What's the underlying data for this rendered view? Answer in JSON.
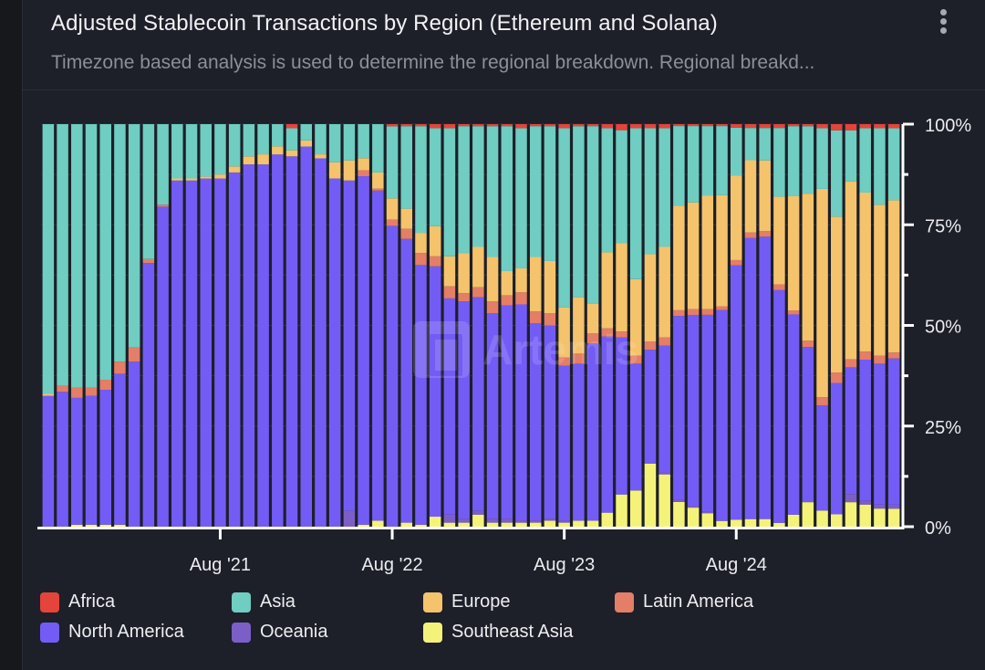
{
  "header": {
    "title": "Adjusted Stablecoin Transactions by Region (Ethereum and Solana)",
    "subtitle": "Timezone based analysis is used to determine the regional breakdown. Regional breakd...",
    "menu_icon": "more-vertical-icon"
  },
  "watermark": "Artemis",
  "chart_data": {
    "type": "bar",
    "stacked": true,
    "normalized": true,
    "title": "Adjusted Stablecoin Transactions by Region (Ethereum and Solana)",
    "xlabel": "",
    "ylabel": "",
    "ylim": [
      0,
      100
    ],
    "yticks": [
      "0%",
      "25%",
      "50%",
      "75%",
      "100%"
    ],
    "xticks": [
      {
        "label": "Aug '21",
        "index": 12
      },
      {
        "label": "Aug '22",
        "index": 24
      },
      {
        "label": "Aug '23",
        "index": 36
      },
      {
        "label": "Aug '24",
        "index": 48
      }
    ],
    "legend_position": "bottom",
    "grid": true,
    "categories": [
      "Aug 2020",
      "Sep 2020",
      "Oct 2020",
      "Nov 2020",
      "Dec 2020",
      "Jan 2021",
      "Feb 2021",
      "Mar 2021",
      "Apr 2021",
      "May 2021",
      "Jun 2021",
      "Jul 2021",
      "Aug 2021",
      "Sep 2021",
      "Oct 2021",
      "Nov 2021",
      "Dec 2021",
      "Jan 2022",
      "Feb 2022",
      "Mar 2022",
      "Apr 2022",
      "May 2022",
      "Jun 2022",
      "Jul 2022",
      "Aug 2022",
      "Sep 2022",
      "Oct 2022",
      "Nov 2022",
      "Dec 2022",
      "Jan 2023",
      "Feb 2023",
      "Mar 2023",
      "Apr 2023",
      "May 2023",
      "Jun 2023",
      "Jul 2023",
      "Aug 2023",
      "Sep 2023",
      "Oct 2023",
      "Nov 2023",
      "Dec 2023",
      "Jan 2024",
      "Feb 2024",
      "Mar 2024",
      "Apr 2024",
      "May 2024",
      "Jun 2024",
      "Jul 2024",
      "Aug 2024",
      "Sep 2024",
      "Oct 2024",
      "Nov 2024",
      "Dec 2024",
      "Jan 2025",
      "Feb 2025",
      "Mar 2025",
      "Apr 2025",
      "May 2025",
      "Jun 2025",
      "Jul 2025"
    ],
    "series": [
      {
        "name": "Southeast Asia",
        "color": "#f5f27a",
        "values": [
          0,
          0,
          0.5,
          0.5,
          0.5,
          0.5,
          0,
          0,
          0,
          0,
          0,
          0,
          0,
          0,
          0,
          0,
          0,
          0,
          0,
          0,
          0,
          0,
          0.5,
          1.5,
          0,
          1,
          0.5,
          2.5,
          1,
          1,
          3,
          1,
          1,
          1,
          1,
          1.5,
          1,
          1.5,
          1.5,
          3.5,
          8,
          9,
          15.5,
          13,
          6.5,
          5,
          3.5,
          1.5,
          2,
          2,
          2,
          1,
          3,
          6,
          4,
          3,
          6,
          5.5,
          4.5,
          4.5
        ]
      },
      {
        "name": "Oceania",
        "color": "#7b5fc7",
        "values": [
          0,
          0,
          0,
          0,
          0,
          0,
          0,
          0,
          0,
          0,
          0,
          0,
          0,
          0,
          0,
          0,
          0,
          0,
          0,
          0,
          0,
          4,
          0,
          0,
          0,
          0,
          0,
          0,
          2,
          1,
          1,
          1,
          1,
          0.5,
          0.5,
          0.5,
          0.5,
          0,
          0,
          0,
          0,
          0,
          0,
          0.5,
          0.5,
          0.5,
          0.5,
          0,
          0,
          0,
          0,
          0,
          0,
          0,
          0,
          0,
          2,
          1,
          1,
          1
        ]
      },
      {
        "name": "North America",
        "color": "#735cf5",
        "values": [
          32.5,
          33.5,
          31.5,
          32,
          33.5,
          37.5,
          41,
          65.5,
          79.5,
          86,
          86,
          86.5,
          86.5,
          88,
          90,
          90,
          92,
          92,
          93.5,
          91.5,
          86.5,
          82,
          87,
          82,
          71,
          70.5,
          64.5,
          62.5,
          54,
          54,
          53,
          51,
          53,
          54,
          49,
          48,
          38.5,
          39,
          44,
          44,
          39,
          31.5,
          28,
          31.5,
          48.5,
          50,
          51,
          55,
          72,
          74,
          74,
          61,
          50,
          38,
          26,
          32,
          31,
          35,
          35,
          36.5
        ]
      },
      {
        "name": "Latin America",
        "color": "#e47e66",
        "values": [
          0,
          1.5,
          2.5,
          2,
          2.5,
          3,
          3.5,
          1,
          0.5,
          0,
          0,
          0,
          0,
          0,
          0,
          0,
          0,
          0,
          0,
          0,
          0,
          0,
          1.5,
          0.5,
          1.5,
          2.5,
          3,
          2.5,
          3,
          2,
          2.5,
          3,
          2.5,
          3,
          3,
          3,
          2,
          2.5,
          2.5,
          2,
          1.5,
          2,
          2,
          2,
          1.5,
          1.5,
          1.5,
          1,
          1.5,
          1.5,
          1.5,
          1.5,
          1,
          1.5,
          2,
          2.5,
          2,
          2,
          2,
          1.5
        ]
      },
      {
        "name": "Europe",
        "color": "#f4c36b",
        "values": [
          0.5,
          0,
          0,
          0,
          0,
          0,
          0,
          0,
          0,
          0.5,
          0.5,
          0.5,
          1,
          1.5,
          2,
          2.5,
          2,
          1.5,
          1.5,
          1,
          4,
          5,
          3,
          4,
          5,
          5,
          5,
          7.5,
          7.5,
          10,
          10,
          11,
          6,
          6,
          13.5,
          13,
          12.5,
          14,
          7.5,
          19,
          22,
          19,
          21.5,
          22.5,
          27.5,
          28,
          29.5,
          29,
          24,
          19,
          18.5,
          23,
          28.5,
          36,
          51.5,
          38,
          43.5,
          39.5,
          37.5,
          38
        ]
      },
      {
        "name": "Asia",
        "color": "#6fcdc1",
        "values": [
          67,
          65,
          65.5,
          65.5,
          63.5,
          59,
          55.5,
          33.5,
          20,
          13.5,
          13.5,
          13,
          12.5,
          10.5,
          8,
          7.5,
          5.5,
          5.5,
          4,
          7.5,
          9.5,
          9,
          8.5,
          12,
          17,
          20.5,
          26.5,
          24.5,
          32,
          31.5,
          30,
          32.5,
          36,
          35,
          32.5,
          33.5,
          44.5,
          42.5,
          44,
          31,
          28,
          37.5,
          31,
          29.5,
          21,
          20,
          18,
          18,
          13.5,
          8.5,
          8.5,
          18,
          17.5,
          16.5,
          15,
          21,
          12.5,
          16,
          19,
          18
        ]
      },
      {
        "name": "Africa",
        "color": "#e5443a",
        "values": [
          0,
          0,
          0,
          0,
          0,
          0,
          0,
          0,
          0,
          0,
          0,
          0,
          0,
          0,
          0,
          0,
          0,
          1,
          0,
          0,
          0,
          0,
          0,
          0,
          0.5,
          0.5,
          0.5,
          1,
          1,
          0.5,
          0.5,
          0.5,
          0.5,
          1,
          0.5,
          0.5,
          1,
          0.5,
          0.5,
          1,
          1.5,
          1,
          1,
          1,
          0.5,
          0.5,
          0.5,
          0.5,
          1,
          1,
          1,
          1,
          0.5,
          0.5,
          1,
          1.5,
          1.5,
          1,
          1,
          1
        ]
      }
    ],
    "legend": [
      {
        "name": "Africa",
        "color": "#e5443a"
      },
      {
        "name": "Asia",
        "color": "#6fcdc1"
      },
      {
        "name": "Europe",
        "color": "#f4c36b"
      },
      {
        "name": "Latin America",
        "color": "#e47e66"
      },
      {
        "name": "North America",
        "color": "#735cf5"
      },
      {
        "name": "Oceania",
        "color": "#7b5fc7"
      },
      {
        "name": "Southeast Asia",
        "color": "#f5f27a"
      }
    ]
  }
}
